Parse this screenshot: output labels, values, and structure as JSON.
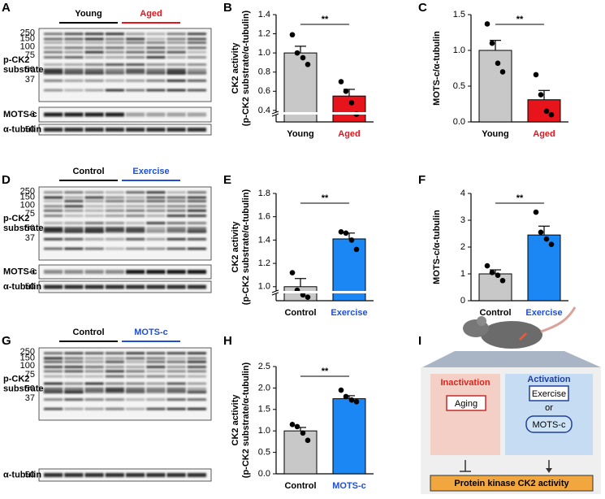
{
  "panel_labels": [
    "A",
    "B",
    "C",
    "D",
    "E",
    "F",
    "G",
    "H",
    "I"
  ],
  "blots": [
    {
      "groups": [
        {
          "label": "Young",
          "color": "#000000"
        },
        {
          "label": "Aged",
          "color": "#e8141c"
        }
      ],
      "rows": [
        {
          "label": [
            "p-CK2",
            "substrate"
          ],
          "markers": [
            250,
            150,
            100,
            75,
            50,
            37
          ]
        },
        {
          "label": [
            "MOTS-c"
          ],
          "markers": [
            6
          ]
        },
        {
          "label": [
            "α-tubulin"
          ],
          "markers": [
            50
          ]
        }
      ]
    },
    {
      "groups": [
        {
          "label": "Control",
          "color": "#000000"
        },
        {
          "label": "Exercise",
          "color": "#1f4fd6"
        }
      ],
      "rows": [
        {
          "label": [
            "p-CK2",
            "substrate"
          ],
          "markers": [
            250,
            150,
            100,
            75,
            50,
            37
          ]
        },
        {
          "label": [
            "MOTS-c"
          ],
          "markers": [
            6
          ]
        },
        {
          "label": [
            "α-tubulin"
          ],
          "markers": [
            50
          ]
        }
      ]
    },
    {
      "groups": [
        {
          "label": "Control",
          "color": "#000000"
        },
        {
          "label": "MOTS-c",
          "color": "#1f4fd6"
        }
      ],
      "rows": [
        {
          "label": [
            "p-CK2",
            "substrate"
          ],
          "markers": [
            250,
            150,
            100,
            75,
            50,
            37
          ]
        },
        {
          "label": [
            "α-tubulin"
          ],
          "markers": [
            50
          ]
        }
      ]
    }
  ],
  "chart_data": [
    {
      "type": "bar",
      "ylabel": "CK2 activity",
      "ylabel_sub": "(p-CK2 substrate/α-tubulin)",
      "categories": [
        "Young",
        "Aged"
      ],
      "category_colors": [
        "#000000",
        "#e8141c"
      ],
      "colors": [
        "#c8c8c8",
        "#e8141c"
      ],
      "values": [
        1.0,
        0.55
      ],
      "errors": [
        0.07,
        0.07
      ],
      "points": [
        [
          1.19,
          1.0,
          0.95,
          0.88
        ],
        [
          0.7,
          0.6,
          0.48,
          0.36
        ]
      ],
      "annotation": "**",
      "axis_break": true,
      "ylim": [
        0.28,
        1.4
      ],
      "yticks": [
        0.4,
        0.6,
        0.8,
        {
          "value": 1.0,
          "label": "1.0"
        },
        1.2,
        1.4
      ]
    },
    {
      "type": "bar",
      "ylabel": "MOTS-c/α-tubulin",
      "categories": [
        "Young",
        "Aged"
      ],
      "category_colors": [
        "#000000",
        "#e8141c"
      ],
      "colors": [
        "#c8c8c8",
        "#e8141c"
      ],
      "values": [
        1.0,
        0.31
      ],
      "errors": [
        0.14,
        0.13
      ],
      "points": [
        [
          1.37,
          1.1,
          0.82,
          0.7
        ],
        [
          0.66,
          0.38,
          0.15,
          0.1
        ]
      ],
      "annotation": "**",
      "axis_break": false,
      "ylim": [
        0,
        1.5
      ],
      "yticks": [
        {
          "value": 0,
          "label": "0.0"
        },
        0.5,
        {
          "value": 1,
          "label": "1.0"
        },
        1.5
      ]
    },
    {
      "type": "bar",
      "ylabel": "CK2 activity",
      "ylabel_sub": "(p-CK2 substrate/α-tubulin)",
      "categories": [
        "Control",
        "Exercise"
      ],
      "category_colors": [
        "#000000",
        "#1f4fd6"
      ],
      "colors": [
        "#c8c8c8",
        "#1a87f5"
      ],
      "values": [
        1.0,
        1.41
      ],
      "errors": [
        0.07,
        0.05
      ],
      "points": [
        [
          1.12,
          0.97,
          0.93,
          0.91
        ],
        [
          1.47,
          1.46,
          1.4,
          1.32
        ]
      ],
      "annotation": "**",
      "axis_break": true,
      "ylim": [
        0.88,
        1.8
      ],
      "yticks": [
        {
          "value": 1.0,
          "label": "1.0"
        },
        1.2,
        1.4,
        1.6,
        1.8
      ]
    },
    {
      "type": "bar",
      "ylabel": "MOTS-c/α-tubulin",
      "categories": [
        "Control",
        "Exercise"
      ],
      "category_colors": [
        "#000000",
        "#1f4fd6"
      ],
      "colors": [
        "#c8c8c8",
        "#1a87f5"
      ],
      "values": [
        1.0,
        2.45
      ],
      "errors": [
        0.15,
        0.33
      ],
      "points": [
        [
          1.3,
          1.05,
          0.95,
          0.75
        ],
        [
          3.3,
          2.55,
          2.3,
          2.1
        ]
      ],
      "annotation": "**",
      "axis_break": false,
      "ylim": [
        0,
        4
      ],
      "yticks": [
        0,
        1,
        2,
        3,
        4
      ]
    },
    {
      "type": "bar",
      "ylabel": "CK2 activity",
      "ylabel_sub": "(p-CK2 substrate/α-tubulin)",
      "categories": [
        "Control",
        "MOTS-c"
      ],
      "category_colors": [
        "#000000",
        "#1f4fd6"
      ],
      "colors": [
        "#c8c8c8",
        "#1a87f5"
      ],
      "values": [
        1.0,
        1.75
      ],
      "errors": [
        0.08,
        0.07
      ],
      "points": [
        [
          1.15,
          1.1,
          0.95,
          0.78
        ],
        [
          1.95,
          1.8,
          1.72,
          1.68
        ]
      ],
      "annotation": "**",
      "axis_break": false,
      "ylim": [
        0,
        2.5
      ],
      "yticks": [
        {
          "value": 0,
          "label": "0.0"
        },
        0.5,
        {
          "value": 1,
          "label": "1.0"
        },
        1.5,
        {
          "value": 2,
          "label": "2.0"
        },
        2.5
      ]
    }
  ],
  "diagram": {
    "inactivation": "Inactivation",
    "aging": "Aging",
    "activation": "Activation",
    "exercise": "Exercise",
    "or": "or",
    "mots_c": "MOTS-c",
    "target": "Protein kinase CK2 activity"
  }
}
